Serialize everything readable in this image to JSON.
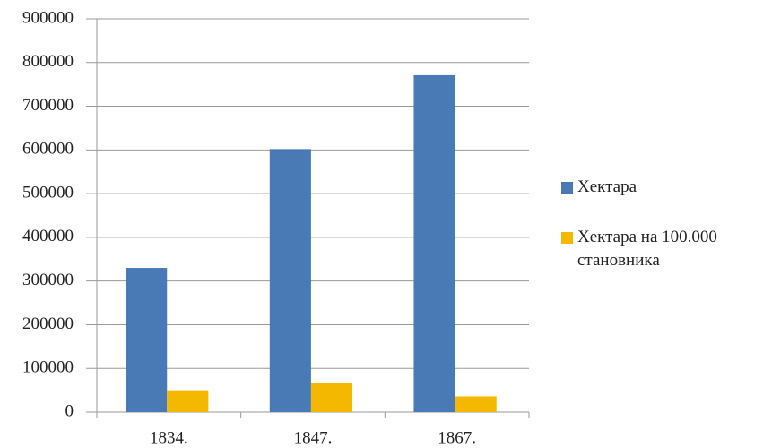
{
  "chart_data": {
    "type": "bar",
    "categories": [
      "1834.",
      "1847.",
      "1867."
    ],
    "series": [
      {
        "name": "Хектара",
        "color": "#4a7ab5",
        "values": [
          330000,
          602000,
          771000
        ]
      },
      {
        "name": "Хектара на 100.000 становника",
        "color": "#f5b800",
        "values": [
          50000,
          67000,
          36000
        ]
      }
    ],
    "ylim": [
      0,
      900000
    ],
    "yticks": [
      0,
      100000,
      200000,
      300000,
      400000,
      500000,
      600000,
      700000,
      800000,
      900000
    ],
    "grid": true,
    "legend": "right"
  }
}
